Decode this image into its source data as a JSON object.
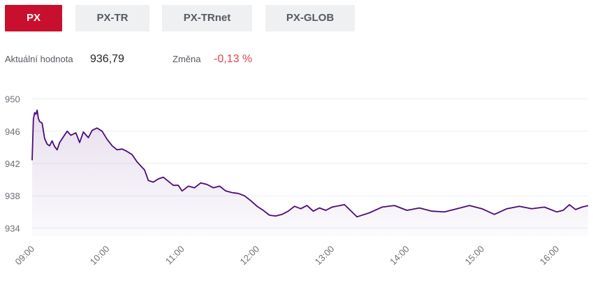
{
  "tabs": [
    {
      "label": "PX",
      "active": true
    },
    {
      "label": "PX-TR",
      "active": false
    },
    {
      "label": "PX-TRnet",
      "active": false
    },
    {
      "label": "PX-GLOB",
      "active": false
    }
  ],
  "stats": {
    "current_label": "Aktuální hodnota",
    "current_value": "936,79",
    "change_label": "Změna",
    "change_value": "-0,13 %"
  },
  "colors": {
    "accent": "#c8102e",
    "negative": "#e0454f",
    "line": "#4b0a7a",
    "tab_bg": "#eff0f2"
  },
  "chart_data": {
    "type": "area",
    "title": "",
    "xlabel": "",
    "ylabel": "",
    "ylim": [
      933,
      951
    ],
    "xlim": [
      "09:00",
      "16:25"
    ],
    "grid": true,
    "legend": "none",
    "y_ticks": [
      "950",
      "946",
      "942",
      "938",
      "934"
    ],
    "y_tick_values": [
      950,
      946,
      942,
      938,
      934
    ],
    "x_ticks": [
      "09:00",
      "10:00",
      "11:00",
      "12:00",
      "13:00",
      "14:00",
      "15:00",
      "16:00"
    ],
    "series": [
      {
        "x": [
          "09:00",
          "09:01",
          "09:02",
          "09:03",
          "09:04",
          "09:05",
          "09:06",
          "09:08",
          "09:10",
          "09:12",
          "09:14",
          "09:16",
          "09:18",
          "09:20",
          "09:22",
          "09:25",
          "09:28",
          "09:31",
          "09:35",
          "09:38",
          "09:41",
          "09:45",
          "09:48",
          "09:52",
          "09:56",
          "10:00",
          "10:04",
          "10:08",
          "10:12",
          "10:16",
          "10:20",
          "10:24",
          "10:27",
          "10:30",
          "10:33",
          "10:37",
          "10:41",
          "10:45",
          "10:49",
          "10:53",
          "10:57",
          "11:00",
          "11:05",
          "11:10",
          "11:15",
          "11:20",
          "11:25",
          "11:30",
          "11:35",
          "11:40",
          "11:45",
          "11:50",
          "11:55",
          "12:00",
          "12:05",
          "12:10",
          "12:15",
          "12:20",
          "12:25",
          "12:30",
          "12:35",
          "12:40",
          "12:45",
          "12:50",
          "12:55",
          "13:00",
          "13:10",
          "13:20",
          "13:30",
          "13:40",
          "13:50",
          "14:00",
          "14:10",
          "14:20",
          "14:30",
          "14:40",
          "14:50",
          "15:00",
          "15:10",
          "15:20",
          "15:30",
          "15:40",
          "15:50",
          "16:00",
          "16:05",
          "16:10",
          "16:15",
          "16:20",
          "16:25"
        ],
        "values": [
          942.4,
          947.5,
          948.3,
          948.1,
          948.6,
          947.6,
          947.2,
          947.0,
          945.1,
          944.4,
          944.2,
          944.8,
          944.1,
          943.7,
          944.6,
          945.3,
          946.0,
          945.5,
          945.8,
          944.6,
          945.9,
          945.2,
          946.1,
          946.4,
          946.0,
          945.0,
          944.2,
          943.7,
          943.8,
          943.5,
          943.1,
          942.2,
          941.7,
          941.2,
          939.9,
          939.7,
          940.1,
          940.3,
          939.8,
          939.3,
          939.3,
          938.6,
          939.2,
          939.0,
          939.6,
          939.4,
          939.0,
          939.2,
          938.6,
          938.4,
          938.3,
          938.0,
          937.4,
          936.7,
          936.2,
          935.6,
          935.5,
          935.7,
          936.1,
          936.7,
          936.4,
          936.8,
          936.1,
          936.5,
          936.2,
          936.6,
          936.9,
          935.4,
          935.9,
          936.6,
          936.8,
          936.2,
          936.5,
          936.1,
          936.0,
          936.4,
          936.8,
          936.4,
          935.7,
          936.4,
          936.7,
          936.4,
          936.6,
          936.0,
          936.2,
          936.9,
          936.3,
          936.6,
          936.79
        ]
      }
    ]
  }
}
